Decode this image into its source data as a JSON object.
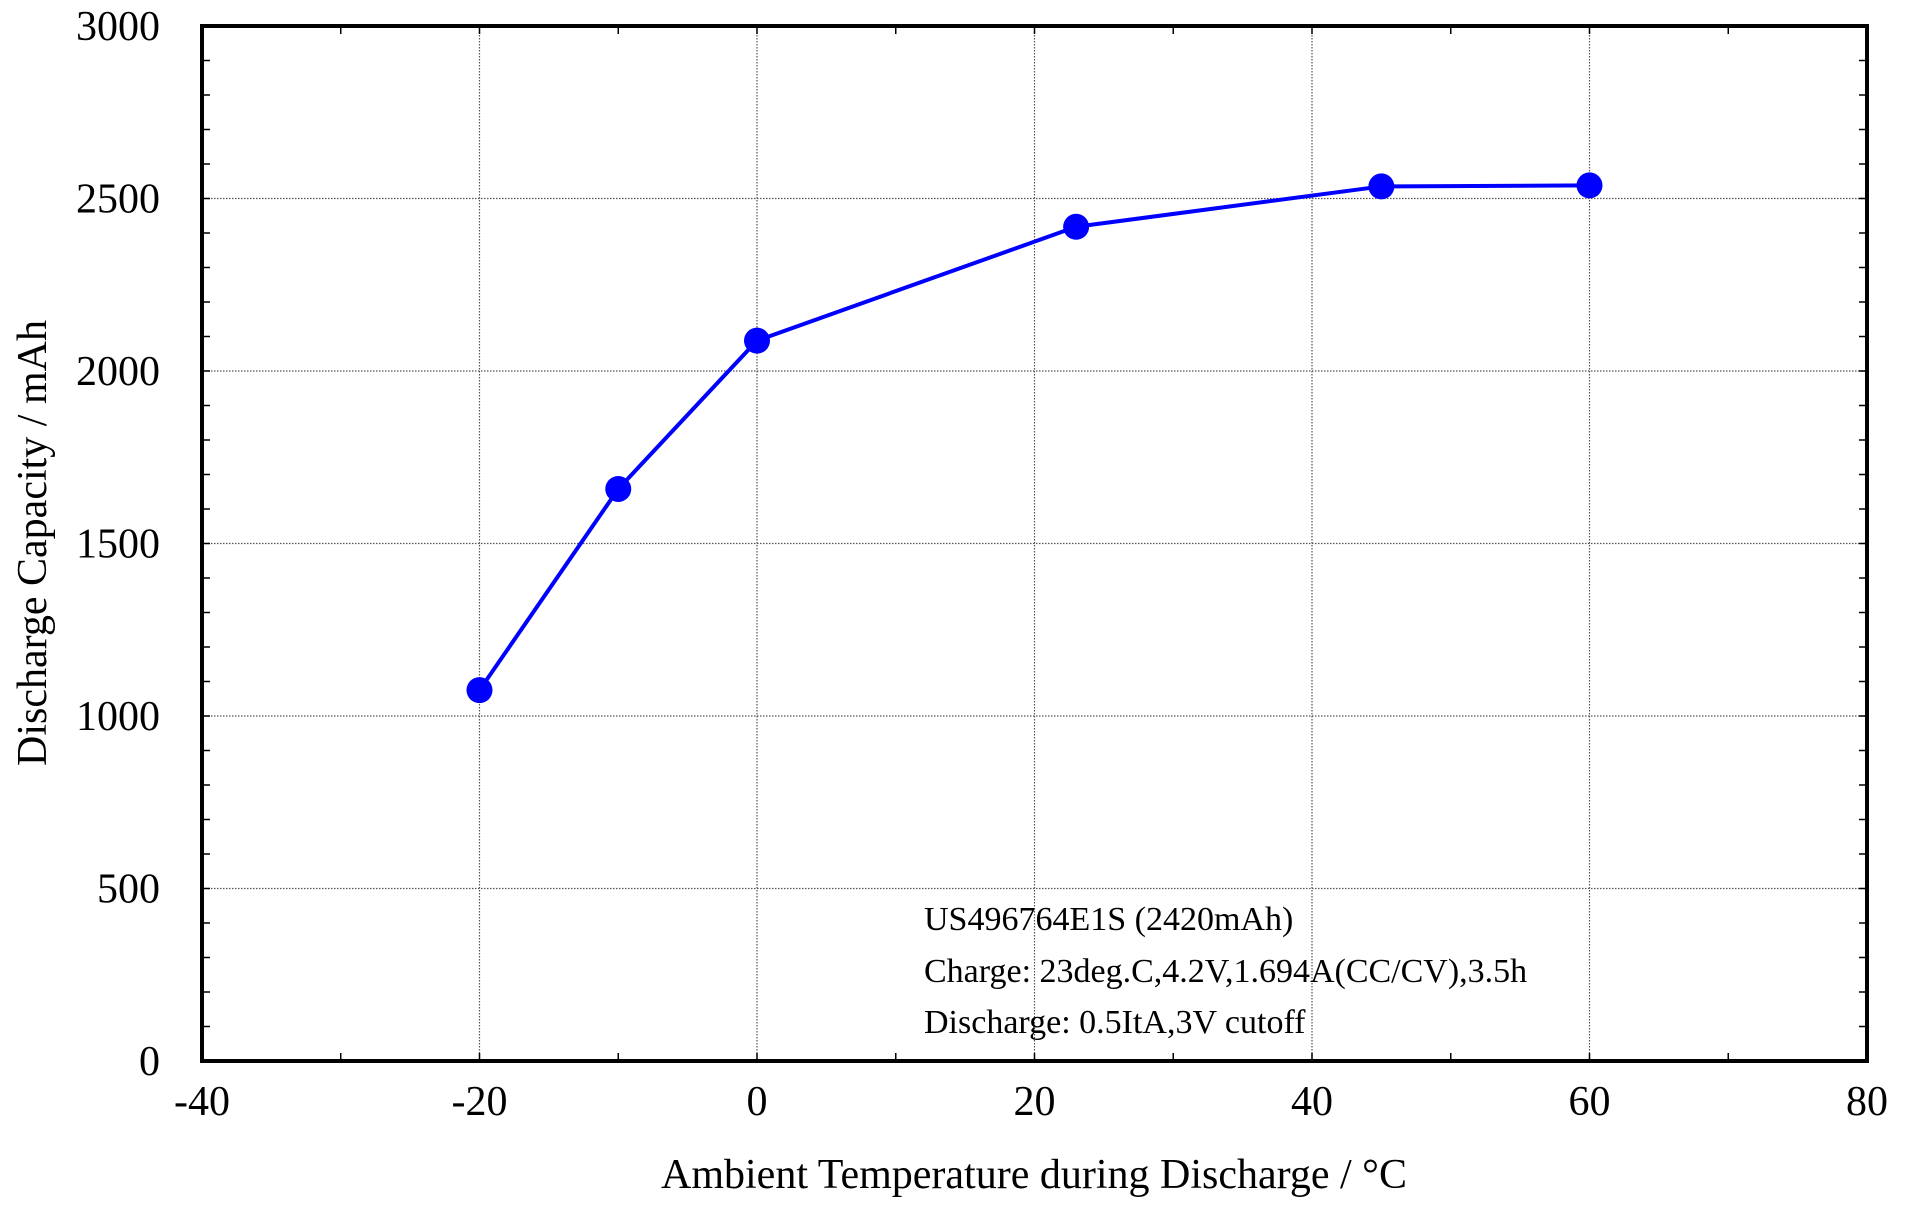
{
  "chart_data": {
    "type": "line",
    "title": "",
    "xlabel": "Ambient Temperature during Discharge / °C",
    "ylabel": "Discharge Capacity / mAh",
    "xlim": [
      -40,
      80
    ],
    "ylim": [
      0,
      3000
    ],
    "x_ticks": [
      -40,
      -20,
      0,
      20,
      40,
      60,
      80
    ],
    "y_ticks": [
      0,
      500,
      1000,
      1500,
      2000,
      2500,
      3000
    ],
    "x_tick_labels": [
      "-40",
      "-20",
      "0",
      "20",
      "40",
      "60",
      "80"
    ],
    "y_tick_labels": [
      "0",
      "500",
      "1000",
      "1500",
      "2000",
      "2500",
      "3000"
    ],
    "x_minor_step": 10,
    "y_minor_step": 100,
    "grid": true,
    "series": [
      {
        "name": "",
        "color": "#0000ff",
        "marker": "circle",
        "x": [
          -20,
          -10,
          0,
          23,
          45,
          60
        ],
        "y": [
          1075,
          1658,
          2088,
          2418,
          2535,
          2538
        ]
      }
    ],
    "annotation": [
      "US496764E1S (2420mAh)",
      "Charge: 23deg.C,4.2V,1.694A(CC/CV),3.5h",
      "Discharge: 0.5ItA,3V cutoff"
    ]
  }
}
